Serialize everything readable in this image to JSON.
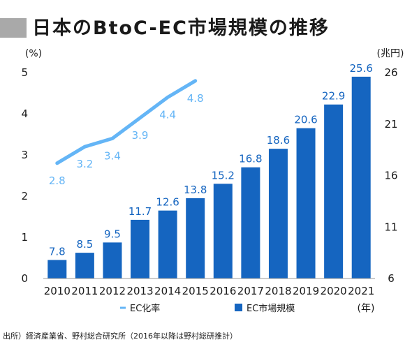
{
  "title": "日本のBtoC-EC市場規模の推移",
  "source": "出所）経済産業省、野村総合研究所（2016年以降は野村総研推計）",
  "colors": {
    "bar": "#1565c0",
    "line": "#64b5f6",
    "title_block": "#a9a9a9",
    "text": "#1a1a1a"
  },
  "chart_data": {
    "type": "bar",
    "categories": [
      "2010",
      "2011",
      "2012",
      "2013",
      "2014",
      "2015",
      "2016",
      "2017",
      "2018",
      "2019",
      "2020",
      "2021"
    ],
    "x_unit": "(年)",
    "series": [
      {
        "name": "EC市場規模",
        "type": "bar",
        "axis": "right",
        "values": [
          7.8,
          8.5,
          9.5,
          11.7,
          12.6,
          13.8,
          15.2,
          16.8,
          18.6,
          20.6,
          22.9,
          25.6
        ],
        "labels": [
          "7.8",
          "8.5",
          "9.5",
          "11.7",
          "12.6",
          "13.8",
          "15.2",
          "16.8",
          "18.6",
          "20.6",
          "22.9",
          "25.6"
        ]
      },
      {
        "name": "EC化率",
        "type": "line",
        "axis": "left",
        "values": [
          2.8,
          3.2,
          3.4,
          3.9,
          4.4,
          4.8,
          null,
          null,
          null,
          null,
          null,
          null
        ],
        "labels": [
          "2.8",
          "3.2",
          "3.4",
          "3.9",
          "4.4",
          "4.8"
        ]
      }
    ],
    "y_left": {
      "unit": "(%)",
      "ticks": [
        "0",
        "1",
        "2",
        "3",
        "4",
        "5"
      ],
      "range": [
        0,
        5
      ]
    },
    "y_right": {
      "unit": "(兆円)",
      "ticks": [
        "6",
        "11",
        "16",
        "21",
        "26"
      ],
      "range": [
        6,
        26
      ]
    },
    "legend": {
      "position": "bottom",
      "items": [
        "EC化率",
        "EC市場規模"
      ]
    },
    "grid": false
  }
}
